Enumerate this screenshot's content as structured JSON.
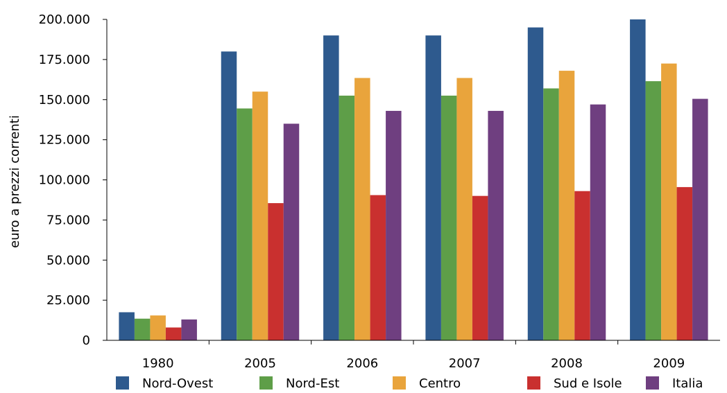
{
  "chart_data": {
    "type": "bar",
    "title": "",
    "xlabel": "",
    "ylabel": "euro a prezzi correnti",
    "ylim": [
      0,
      200000
    ],
    "yticks": [
      0,
      25000,
      50000,
      75000,
      100000,
      125000,
      150000,
      175000,
      200000
    ],
    "ytick_labels": [
      "0",
      "25.000",
      "50.000",
      "75.000",
      "100.000",
      "125.000",
      "150.000",
      "175.000",
      "200.000"
    ],
    "categories": [
      "1980",
      "2005",
      "2006",
      "2007",
      "2008",
      "2009"
    ],
    "series": [
      {
        "name": "Nord-Ovest",
        "color": "#2E5A8E",
        "values": [
          17500,
          180000,
          190000,
          190000,
          195000,
          200000
        ]
      },
      {
        "name": "Nord-Est",
        "color": "#5E9E48",
        "values": [
          13500,
          144500,
          152500,
          152500,
          157000,
          161500
        ]
      },
      {
        "name": "Centro",
        "color": "#E9A43C",
        "values": [
          15500,
          155000,
          163500,
          163500,
          168000,
          172500
        ]
      },
      {
        "name": "Sud e Isole",
        "color": "#C9302F",
        "values": [
          8000,
          85500,
          90500,
          90000,
          93000,
          95500
        ]
      },
      {
        "name": "Italia",
        "color": "#6F3F80",
        "values": [
          13000,
          135000,
          143000,
          143000,
          147000,
          150500
        ]
      }
    ],
    "grid": false,
    "legend_position": "bottom"
  }
}
